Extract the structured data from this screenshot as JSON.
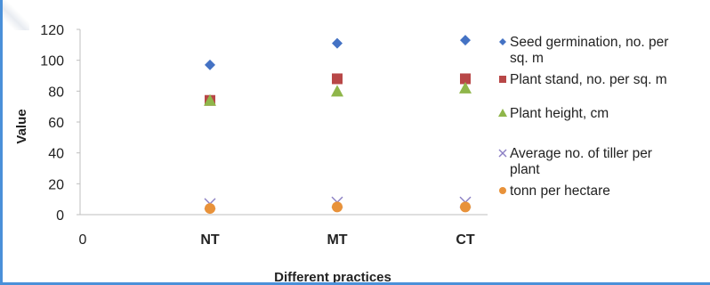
{
  "chart_data": {
    "type": "scatter",
    "title": "",
    "xlabel": "Different practices",
    "ylabel": "Value",
    "x_origin_label": "0",
    "categories": [
      "NT",
      "MT",
      "CT"
    ],
    "ylim": [
      0,
      120
    ],
    "yticks": [
      0,
      20,
      40,
      60,
      80,
      100,
      120
    ],
    "grid": false,
    "legend_position": "right",
    "series": [
      {
        "name": "Seed germination, no. per sq. m",
        "legend_lines": [
          "Seed germination, no. per",
          "sq. m"
        ],
        "marker": "diamond",
        "color": "#4472c4",
        "values": [
          97,
          111,
          113
        ]
      },
      {
        "name": "Plant stand, no. per sq. m",
        "legend_lines": [
          "Plant stand, no. per sq. m"
        ],
        "marker": "square",
        "color": "#b84747",
        "values": [
          74,
          88,
          88
        ]
      },
      {
        "name": "Plant height, cm",
        "legend_lines": [
          "Plant height, cm"
        ],
        "marker": "triangle",
        "color": "#8fb64a",
        "values": [
          74,
          80,
          82
        ]
      },
      {
        "name": "Average no. of tiller per plant",
        "legend_lines": [
          "Average no. of tiller per",
          "plant"
        ],
        "marker": "x",
        "color": "#8b7fc4",
        "values": [
          7,
          8,
          8
        ]
      },
      {
        "name": "tonn per hectare",
        "legend_lines": [
          "tonn per hectare"
        ],
        "marker": "circle",
        "color": "#e8923a",
        "values": [
          4,
          5,
          5
        ]
      }
    ]
  }
}
